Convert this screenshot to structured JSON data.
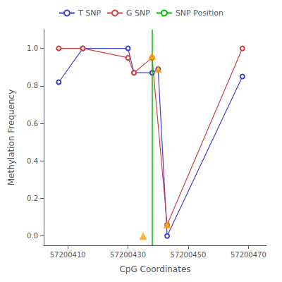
{
  "chart_data": {
    "type": "line",
    "xlabel": "CpG Coordinates",
    "ylabel": "Methylation Frequency",
    "xlim": [
      57200402,
      57200476
    ],
    "ylim": [
      -0.05,
      1.1
    ],
    "xticks": [
      57200410,
      57200430,
      57200450,
      57200470
    ],
    "yticks": [
      {
        "value": 0.0,
        "label": "0.0"
      },
      0.2,
      0.4,
      0.6,
      0.8,
      {
        "value": 1.0,
        "label": "1.0"
      }
    ],
    "grid": false,
    "legend": "top",
    "series": [
      {
        "name": "T SNP",
        "type": "line",
        "color": "#4040cc",
        "marker": "circle_open",
        "line_style": "solid",
        "x": [
          57200407,
          57200415,
          57200430,
          57200432,
          57200438,
          57200440,
          57200443,
          57200468
        ],
        "values": [
          0.82,
          1.0,
          1.0,
          0.87,
          0.87,
          0.89,
          0.0,
          0.85
        ]
      },
      {
        "name": "G SNP",
        "type": "line",
        "color": "#cc4040",
        "marker": "circle_open",
        "line_style": "solid",
        "x": [
          57200407,
          57200415,
          57200430,
          57200432,
          57200438,
          57200443,
          57200468
        ],
        "values": [
          1.0,
          1.0,
          0.95,
          0.87,
          0.95,
          0.06,
          1.0
        ]
      },
      {
        "name": "SNP Position",
        "type": "vline",
        "color": "#00bb00",
        "line_style": "solid",
        "x": 57200438
      },
      {
        "type": "scatter",
        "color": "#FFA500",
        "marker": "triangle",
        "x": [
          57200435,
          57200438,
          57200440,
          57200443
        ],
        "values": [
          0.0,
          0.96,
          0.89,
          0.06
        ]
      }
    ]
  }
}
